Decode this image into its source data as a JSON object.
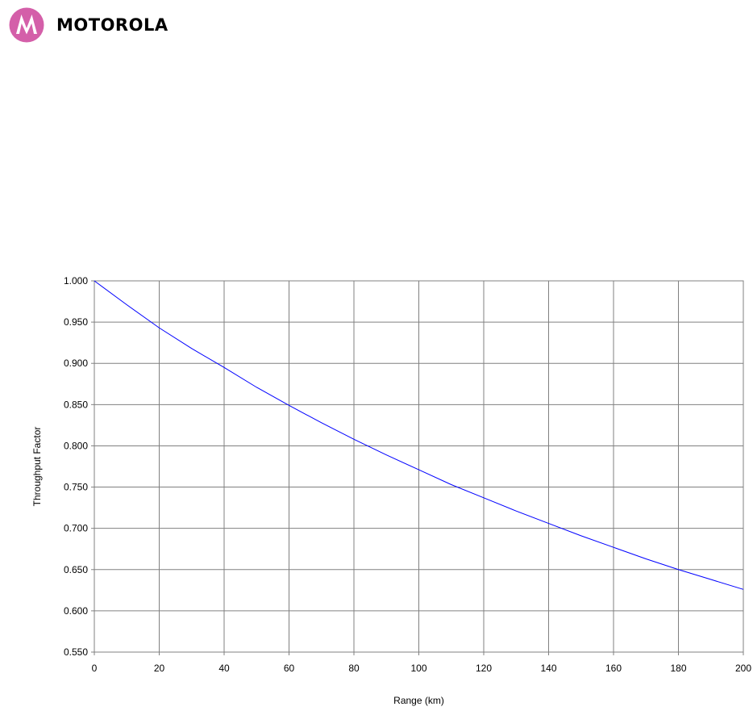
{
  "logo": {
    "brand_name": "MOTOROLA",
    "brand_color": "#d45fa9"
  },
  "chart_data": {
    "type": "line",
    "title": "",
    "xlabel": "Range (km)",
    "ylabel": "Throughput Factor",
    "xlim": [
      0,
      200
    ],
    "ylim": [
      0.55,
      1.0
    ],
    "x_ticks": [
      0,
      20,
      40,
      60,
      80,
      100,
      120,
      140,
      160,
      180,
      200
    ],
    "x_tick_labels": [
      "0",
      "20",
      "40",
      "60",
      "80",
      "100",
      "120",
      "140",
      "160",
      "180",
      "200"
    ],
    "y_ticks": [
      0.55,
      0.6,
      0.65,
      0.7,
      0.75,
      0.8,
      0.85,
      0.9,
      0.95,
      1.0
    ],
    "y_tick_labels": [
      "0.550",
      "0.600",
      "0.650",
      "0.700",
      "0.750",
      "0.800",
      "0.850",
      "0.900",
      "0.950",
      "1.000"
    ],
    "grid": true,
    "line_color": "#0000ff",
    "series": [
      {
        "x": [
          0,
          10,
          20,
          30,
          40,
          50,
          60,
          70,
          80,
          90,
          100,
          110,
          120,
          130,
          140,
          150,
          160,
          170,
          180,
          190,
          200
        ],
        "y": [
          1.0,
          0.971,
          0.943,
          0.918,
          0.895,
          0.871,
          0.849,
          0.828,
          0.808,
          0.789,
          0.771,
          0.753,
          0.737,
          0.721,
          0.706,
          0.691,
          0.677,
          0.663,
          0.65,
          0.638,
          0.626
        ]
      }
    ]
  }
}
